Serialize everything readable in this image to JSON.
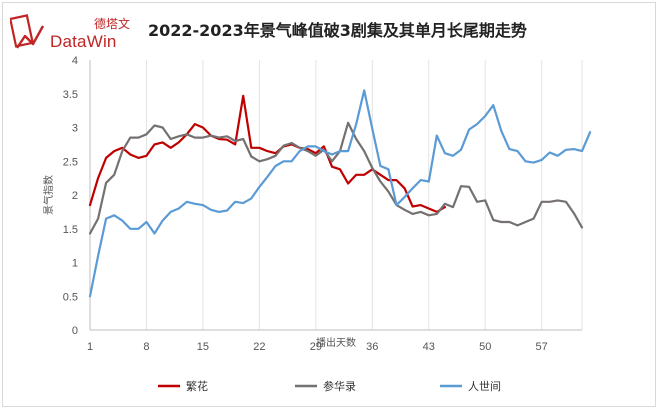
{
  "logo": {
    "cn_text": "德塔文",
    "en_text": "DataWin",
    "colors": {
      "brand": "#c22424"
    }
  },
  "chart_data": {
    "type": "line",
    "title": "2022-2023年景气峰值破3剧集及其单月长尾期走势",
    "xlabel": "播出天数",
    "ylabel": "景气指数",
    "ylim": [
      0,
      4
    ],
    "xlim": [
      1,
      62
    ],
    "yticks": [
      0,
      0.5,
      1,
      1.5,
      2,
      2.5,
      3,
      3.5,
      4
    ],
    "ytick_labels": [
      "0",
      "0.5",
      "1",
      "1.5",
      "2",
      "2.5",
      "3",
      "3.5",
      "4"
    ],
    "xticks": [
      1,
      8,
      15,
      22,
      29,
      36,
      43,
      50,
      57
    ],
    "xtick_labels": [
      "1",
      "8",
      "15",
      "22",
      "29",
      "36",
      "43",
      "50",
      "57"
    ],
    "grid": "vertical",
    "legend_position": "bottom",
    "series": [
      {
        "name": "繁花",
        "color": "#c00000",
        "y": [
          1.85,
          2.25,
          2.55,
          2.65,
          2.7,
          2.6,
          2.55,
          2.58,
          2.75,
          2.78,
          2.7,
          2.78,
          2.9,
          3.05,
          3.0,
          2.88,
          2.83,
          2.82,
          2.75,
          3.47,
          2.7,
          2.7,
          2.65,
          2.62,
          2.72,
          2.75,
          2.7,
          2.68,
          2.62,
          2.72,
          2.42,
          2.38,
          2.17,
          2.3,
          2.3,
          2.38,
          2.3,
          2.22,
          2.22,
          2.1,
          1.83,
          1.85,
          1.8,
          1.75,
          1.82
        ]
      },
      {
        "name": "参华录",
        "color": "#767171",
        "y": [
          1.43,
          1.65,
          2.18,
          2.3,
          2.65,
          2.85,
          2.85,
          2.9,
          3.03,
          3.0,
          2.83,
          2.87,
          2.9,
          2.85,
          2.85,
          2.88,
          2.85,
          2.87,
          2.8,
          2.83,
          2.57,
          2.5,
          2.53,
          2.58,
          2.73,
          2.77,
          2.7,
          2.65,
          2.58,
          2.67,
          2.5,
          2.65,
          3.07,
          2.83,
          2.65,
          2.4,
          2.2,
          2.05,
          1.85,
          1.78,
          1.72,
          1.75,
          1.7,
          1.72,
          1.87,
          1.82,
          2.13,
          2.12,
          1.9,
          1.92,
          1.63,
          1.6,
          1.6,
          1.55,
          1.6,
          1.65,
          1.9,
          1.9,
          1.92,
          1.9,
          1.73,
          1.52
        ]
      },
      {
        "name": "人世间",
        "color": "#5b9bd5",
        "y": [
          0.5,
          1.1,
          1.65,
          1.7,
          1.62,
          1.5,
          1.5,
          1.6,
          1.43,
          1.62,
          1.75,
          1.8,
          1.9,
          1.87,
          1.85,
          1.78,
          1.75,
          1.77,
          1.9,
          1.88,
          1.95,
          2.12,
          2.27,
          2.43,
          2.5,
          2.5,
          2.65,
          2.72,
          2.72,
          2.65,
          2.6,
          2.65,
          2.65,
          3.05,
          3.55,
          2.98,
          2.43,
          2.38,
          1.85,
          1.97,
          2.1,
          2.22,
          2.2,
          2.88,
          2.62,
          2.58,
          2.67,
          2.97,
          3.05,
          3.17,
          3.33,
          2.95,
          2.68,
          2.65,
          2.5,
          2.48,
          2.52,
          2.63,
          2.58,
          2.67,
          2.68,
          2.65,
          2.93
        ]
      }
    ]
  }
}
